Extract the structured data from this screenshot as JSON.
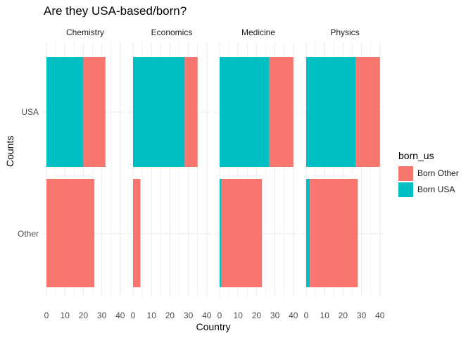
{
  "title": "Are they USA-based/born?",
  "colors": {
    "born_other": "#F8766D",
    "born_usa": "#00BFC4",
    "grid": "#ebebeb"
  },
  "chart_data": {
    "type": "bar",
    "orientation": "horizontal",
    "stacked": true,
    "title": "Are they USA-based/born?",
    "xlabel": "Country",
    "ylabel": "Counts",
    "xlim": [
      0,
      42
    ],
    "x_ticks": [
      0,
      10,
      20,
      30,
      40
    ],
    "categories": [
      "USA",
      "Other"
    ],
    "facets": [
      {
        "name": "Chemistry",
        "series": [
          {
            "name": "Born USA",
            "values": [
              20,
              0
            ]
          },
          {
            "name": "Born Other",
            "values": [
              12,
              26
            ]
          }
        ]
      },
      {
        "name": "Economics",
        "series": [
          {
            "name": "Born USA",
            "values": [
              28,
              0
            ]
          },
          {
            "name": "Born Other",
            "values": [
              7,
              4
            ]
          }
        ]
      },
      {
        "name": "Medicine",
        "series": [
          {
            "name": "Born USA",
            "values": [
              27,
              1
            ]
          },
          {
            "name": "Born Other",
            "values": [
              13,
              22
            ]
          }
        ]
      },
      {
        "name": "Physics",
        "series": [
          {
            "name": "Born USA",
            "values": [
              27,
              2
            ]
          },
          {
            "name": "Born Other",
            "values": [
              13,
              26
            ]
          }
        ]
      }
    ],
    "legend": {
      "title": "born_us",
      "position": "right",
      "entries": [
        "Born Other",
        "Born USA"
      ]
    },
    "grid": true
  }
}
